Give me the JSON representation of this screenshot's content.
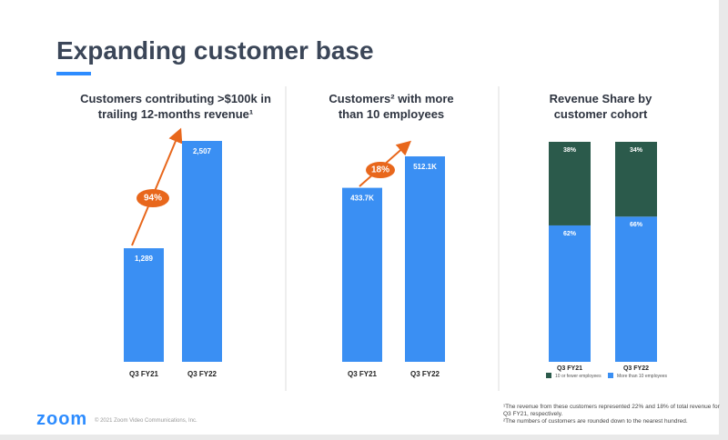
{
  "header": {
    "title": "Expanding customer base"
  },
  "chart_data": [
    {
      "type": "bar",
      "title": "Customers contributing >$100k in trailing 12-months revenue¹",
      "categories": [
        "Q3 FY21",
        "Q3 FY22"
      ],
      "values": [
        1289,
        2507
      ],
      "value_labels": [
        "1,289",
        "2,507"
      ],
      "color": "#3a8ff3",
      "annotation": "94%"
    },
    {
      "type": "bar",
      "title": "Customers² with more than 10 employees",
      "categories": [
        "Q3 FY21",
        "Q3 FY22"
      ],
      "values": [
        433700,
        512100
      ],
      "value_labels": [
        "433.7K",
        "512.1K"
      ],
      "color": "#3a8ff3",
      "annotation": "18%"
    },
    {
      "type": "stacked_bar",
      "title": "Revenue Share by customer cohort",
      "categories": [
        "Q3 FY21",
        "Q3 FY22"
      ],
      "series": [
        {
          "name": "More than 10 employees",
          "color": "#3a8ff3",
          "values": [
            62,
            66
          ],
          "value_labels": [
            "62%",
            "66%"
          ]
        },
        {
          "name": "10 or fewer employees",
          "color": "#2b5a4b",
          "values": [
            38,
            34
          ],
          "value_labels": [
            "38%",
            "34%"
          ]
        }
      ]
    }
  ],
  "footer": {
    "logo": "zoom",
    "copyright": "© 2021 Zoom Video Communications, Inc.",
    "footnotes": [
      "¹The revenue from these customers represented 22% and 18% of total revenue for Q3 FY21, respectively.",
      "²The numbers of customers are rounded down to the nearest hundred."
    ]
  }
}
